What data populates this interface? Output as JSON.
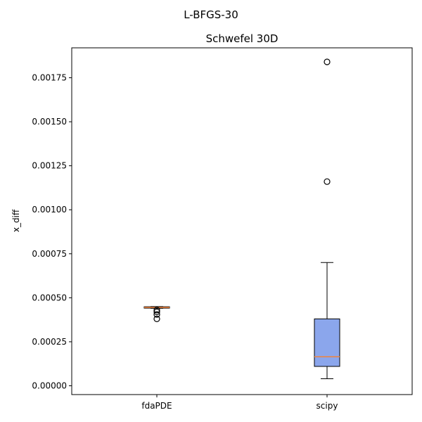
{
  "figure": {
    "suptitle": "L-BFGS-30"
  },
  "chart_data": {
    "type": "boxplot",
    "title": "Schwefel 30D",
    "xlabel": "",
    "ylabel": "x_diff",
    "categories": [
      "fdaPDE",
      "scipy"
    ],
    "ylim": [
      -5e-05,
      0.00192
    ],
    "yticks": [
      0.0,
      0.00025,
      0.0005,
      0.00075,
      0.001,
      0.00125,
      0.0015,
      0.00175
    ],
    "ytick_labels": [
      "0.00000",
      "0.00025",
      "0.00050",
      "0.00075",
      "0.00100",
      "0.00125",
      "0.00150",
      "0.00175"
    ],
    "grid": false,
    "boxes": [
      {
        "category": "fdaPDE",
        "whisker_low": 0.00044,
        "q1": 0.000441,
        "median": 0.000445,
        "q3": 0.000449,
        "whisker_high": 0.00045,
        "outliers": [
          0.00043,
          0.00042,
          0.000405,
          0.00038
        ]
      },
      {
        "category": "scipy",
        "whisker_low": 4e-05,
        "q1": 0.00011,
        "median": 0.000165,
        "q3": 0.00038,
        "whisker_high": 0.0007,
        "outliers": [
          0.00116,
          0.00184
        ]
      }
    ],
    "colors": {
      "box_fill": "#8ba6ec",
      "box_edge": "#000000",
      "median": "#f0843c",
      "whisker": "#000000",
      "outlier_edge": "#000000"
    }
  }
}
